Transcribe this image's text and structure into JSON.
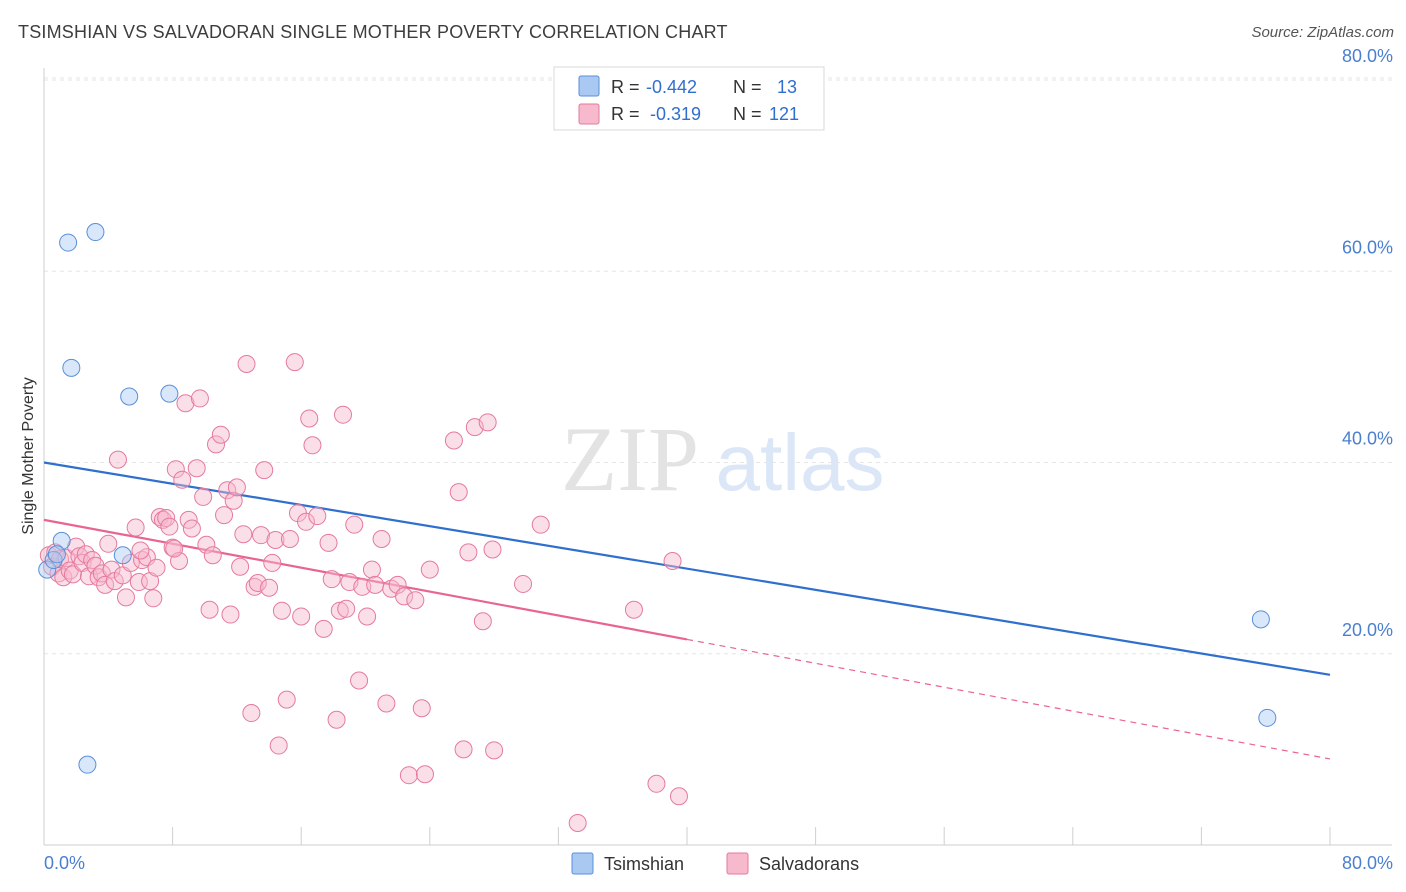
{
  "title": "TSIMSHIAN VS SALVADORAN SINGLE MOTHER POVERTY CORRELATION CHART",
  "source": "Source: ZipAtlas.com",
  "watermark": {
    "zip": "ZIP",
    "atlas": "atlas"
  },
  "legend_top": [
    {
      "r_label": "R =",
      "r_value": "-0.442",
      "n_label": "N =",
      "n_value": "13",
      "color": "#a9c9f2",
      "stroke": "#5b8fd8"
    },
    {
      "r_label": "R =",
      "r_value": "-0.319",
      "n_label": "N =",
      "n_value": "121",
      "color": "#f7b9cc",
      "stroke": "#e57a9e"
    }
  ],
  "legend_bottom": [
    {
      "label": "Tsimshian",
      "color": "#a9c9f2",
      "stroke": "#5b8fd8"
    },
    {
      "label": "Salvadorans",
      "color": "#f7b9cc",
      "stroke": "#e57a9e"
    }
  ],
  "chart_data": {
    "type": "scatter",
    "ylabel": "Single Mother Poverty",
    "xlim": [
      0,
      80
    ],
    "ylim": [
      0,
      80
    ],
    "x_tick_labels": [
      "0.0%",
      "80.0%"
    ],
    "y_ticks": [
      {
        "value": 20,
        "label": "20.0%"
      },
      {
        "value": 40,
        "label": "40.0%"
      },
      {
        "value": 60,
        "label": "60.0%"
      },
      {
        "value": 80,
        "label": "80.0%"
      }
    ],
    "grid": true,
    "series": [
      {
        "name": "Tsimshian",
        "color": "#a9c9f2",
        "stroke": "#5b8fd8",
        "line_color": "#2f6fce",
        "trend": {
          "x1": 0,
          "y1": 40.0,
          "x2": 80,
          "y2": 17.8,
          "solid_until": 80
        },
        "points": [
          [
            0.2,
            28.8
          ],
          [
            0.6,
            29.8
          ],
          [
            1.1,
            31.8
          ],
          [
            1.5,
            63.0
          ],
          [
            1.7,
            49.9
          ],
          [
            2.7,
            8.4
          ],
          [
            3.2,
            64.1
          ],
          [
            4.9,
            30.3
          ],
          [
            5.3,
            46.9
          ],
          [
            7.8,
            47.2
          ],
          [
            0.8,
            30.4
          ],
          [
            75.7,
            23.6
          ],
          [
            76.1,
            13.3
          ]
        ]
      },
      {
        "name": "Salvadorans",
        "color": "#f7b9cc",
        "stroke": "#e57a9e",
        "line_color": "#e8658f",
        "trend": {
          "x1": 0,
          "y1": 34.0,
          "x2": 80,
          "y2": 9.0,
          "solid_until": 40
        },
        "points": [
          [
            0.3,
            30.3
          ],
          [
            0.5,
            29.1
          ],
          [
            0.7,
            30.6
          ],
          [
            0.9,
            28.4
          ],
          [
            1.0,
            29.9
          ],
          [
            1.2,
            28.0
          ],
          [
            1.4,
            30.0
          ],
          [
            1.6,
            28.7
          ],
          [
            1.8,
            28.3
          ],
          [
            2.0,
            31.2
          ],
          [
            2.2,
            30.2
          ],
          [
            2.4,
            29.5
          ],
          [
            2.6,
            30.4
          ],
          [
            2.8,
            28.1
          ],
          [
            3.0,
            29.8
          ],
          [
            3.2,
            29.2
          ],
          [
            3.4,
            28.0
          ],
          [
            3.6,
            28.4
          ],
          [
            3.8,
            27.2
          ],
          [
            4.0,
            31.5
          ],
          [
            4.2,
            28.8
          ],
          [
            4.4,
            27.6
          ],
          [
            4.6,
            40.3
          ],
          [
            4.9,
            28.2
          ],
          [
            5.1,
            25.9
          ],
          [
            5.4,
            29.5
          ],
          [
            5.7,
            33.2
          ],
          [
            5.9,
            27.5
          ],
          [
            6.1,
            29.8
          ],
          [
            6.4,
            30.1
          ],
          [
            6.6,
            27.6
          ],
          [
            6.8,
            25.8
          ],
          [
            7.0,
            29.0
          ],
          [
            7.2,
            34.3
          ],
          [
            7.4,
            34.0
          ],
          [
            7.6,
            34.2
          ],
          [
            7.8,
            33.3
          ],
          [
            8.0,
            31.1
          ],
          [
            8.2,
            39.3
          ],
          [
            8.4,
            29.7
          ],
          [
            8.6,
            38.2
          ],
          [
            8.8,
            46.2
          ],
          [
            9.0,
            34.0
          ],
          [
            9.2,
            33.1
          ],
          [
            9.5,
            39.4
          ],
          [
            9.7,
            46.7
          ],
          [
            9.9,
            36.4
          ],
          [
            10.1,
            31.4
          ],
          [
            10.3,
            24.6
          ],
          [
            10.5,
            30.3
          ],
          [
            10.7,
            41.9
          ],
          [
            11.0,
            42.9
          ],
          [
            11.2,
            34.5
          ],
          [
            11.4,
            37.1
          ],
          [
            11.6,
            24.1
          ],
          [
            11.8,
            36.0
          ],
          [
            12.0,
            37.4
          ],
          [
            12.2,
            29.1
          ],
          [
            12.4,
            32.5
          ],
          [
            12.6,
            50.3
          ],
          [
            12.9,
            13.8
          ],
          [
            13.1,
            27.0
          ],
          [
            13.3,
            27.4
          ],
          [
            13.5,
            32.4
          ],
          [
            13.7,
            39.2
          ],
          [
            14.0,
            26.9
          ],
          [
            14.2,
            29.5
          ],
          [
            14.4,
            31.9
          ],
          [
            14.6,
            10.4
          ],
          [
            14.8,
            24.5
          ],
          [
            15.1,
            15.2
          ],
          [
            15.3,
            32.0
          ],
          [
            15.6,
            50.5
          ],
          [
            15.8,
            34.7
          ],
          [
            16.0,
            23.9
          ],
          [
            16.3,
            33.8
          ],
          [
            16.5,
            44.6
          ],
          [
            16.7,
            41.8
          ],
          [
            17.0,
            34.4
          ],
          [
            17.4,
            22.6
          ],
          [
            17.7,
            31.6
          ],
          [
            17.9,
            27.8
          ],
          [
            18.2,
            13.1
          ],
          [
            18.4,
            24.5
          ],
          [
            18.6,
            45.0
          ],
          [
            18.8,
            24.7
          ],
          [
            19.0,
            27.5
          ],
          [
            19.3,
            33.5
          ],
          [
            19.6,
            17.2
          ],
          [
            19.8,
            27.0
          ],
          [
            20.1,
            23.9
          ],
          [
            20.4,
            28.8
          ],
          [
            20.6,
            27.2
          ],
          [
            21.0,
            32.0
          ],
          [
            21.3,
            14.8
          ],
          [
            21.6,
            26.8
          ],
          [
            22.0,
            27.2
          ],
          [
            22.4,
            26.0
          ],
          [
            22.7,
            7.3
          ],
          [
            23.1,
            25.6
          ],
          [
            23.5,
            14.3
          ],
          [
            23.7,
            7.4
          ],
          [
            24.0,
            28.8
          ],
          [
            25.5,
            42.3
          ],
          [
            25.8,
            36.9
          ],
          [
            26.1,
            10.0
          ],
          [
            26.4,
            30.6
          ],
          [
            26.8,
            43.7
          ],
          [
            27.3,
            23.4
          ],
          [
            27.6,
            44.2
          ],
          [
            27.9,
            30.9
          ],
          [
            28.0,
            9.9
          ],
          [
            29.8,
            27.3
          ],
          [
            30.9,
            33.5
          ],
          [
            33.2,
            2.3
          ],
          [
            36.7,
            24.6
          ],
          [
            38.1,
            6.4
          ],
          [
            39.1,
            29.7
          ],
          [
            39.5,
            5.1
          ],
          [
            6.0,
            30.8
          ],
          [
            8.1,
            31.0
          ]
        ]
      }
    ]
  }
}
